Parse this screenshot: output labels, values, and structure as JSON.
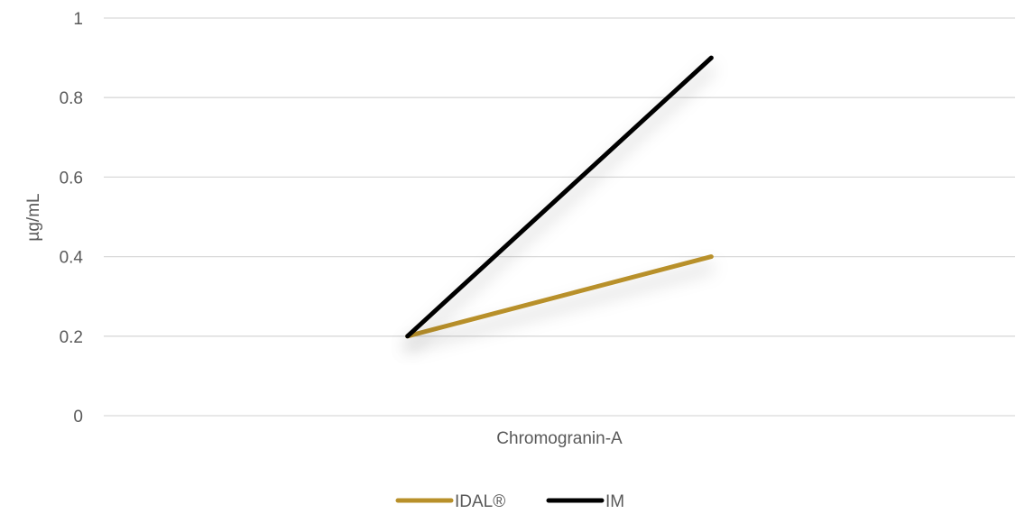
{
  "chart_data": {
    "type": "line",
    "categories": [
      "",
      "Chromogranin-A",
      ""
    ],
    "xlabel": "Chromogranin-A",
    "ylabel": "µg/mL",
    "ylim": [
      0,
      1
    ],
    "yticks": [
      "0",
      "0.2",
      "0.4",
      "0.6",
      "0.8",
      "1"
    ],
    "grid": true,
    "legend_position": "bottom",
    "series": [
      {
        "name": "IDAL®",
        "color": "#b8902a",
        "x": [
          1,
          2
        ],
        "values": [
          0.2,
          0.4
        ]
      },
      {
        "name": "IM",
        "color": "#000000",
        "x": [
          1,
          2
        ],
        "values": [
          0.2,
          0.9
        ]
      }
    ]
  }
}
